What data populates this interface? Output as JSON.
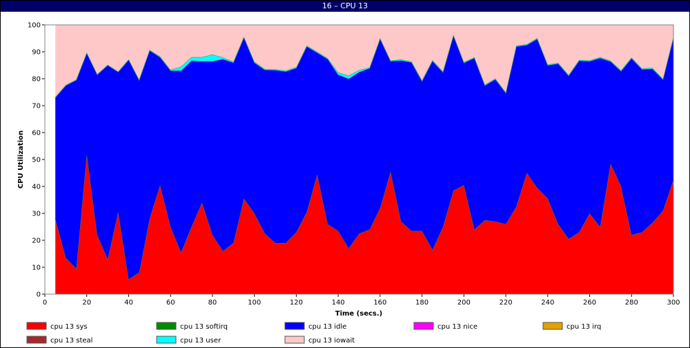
{
  "window": {
    "title": "16 – CPU 13"
  },
  "chart_data": {
    "type": "area",
    "stacked": true,
    "title": "16 – CPU 13",
    "xlabel": "Time (secs.)",
    "ylabel": "CPU Utilization",
    "xlim": [
      0,
      300
    ],
    "ylim": [
      0,
      100
    ],
    "xticks": [
      0,
      20,
      40,
      60,
      80,
      100,
      120,
      140,
      160,
      180,
      200,
      220,
      240,
      260,
      280,
      300
    ],
    "yticks": [
      0,
      10,
      20,
      30,
      40,
      50,
      60,
      70,
      80,
      90,
      100
    ],
    "legend_position": "bottom",
    "x": [
      5,
      10,
      15,
      20,
      25,
      30,
      35,
      40,
      45,
      50,
      55,
      60,
      65,
      70,
      75,
      80,
      85,
      90,
      95,
      100,
      105,
      110,
      115,
      120,
      125,
      130,
      135,
      140,
      145,
      150,
      155,
      160,
      165,
      170,
      175,
      180,
      185,
      190,
      195,
      200,
      205,
      210,
      215,
      220,
      225,
      230,
      235,
      240,
      245,
      250,
      255,
      260,
      265,
      270,
      275,
      280,
      285,
      290,
      295,
      300
    ],
    "series": [
      {
        "name": "cpu 13 sys",
        "color": "#ff0000",
        "values": [
          28,
          13.5,
          9.5,
          52,
          22,
          13,
          30.5,
          5.5,
          8,
          28,
          40.5,
          25,
          15.5,
          25,
          34,
          22,
          16,
          19,
          35.5,
          30,
          22.5,
          19,
          19,
          23,
          30.5,
          44.5,
          26,
          23.5,
          17,
          22.5,
          24,
          32,
          45.5,
          27,
          23.5,
          23.5,
          16.5,
          25,
          38.5,
          40.5,
          24,
          27.5,
          27,
          26,
          32.5,
          45,
          39.5,
          35.5,
          26,
          20.5,
          23,
          30,
          25,
          48.5,
          40,
          22,
          23,
          26.5,
          31,
          42.5
        ]
      },
      {
        "name": "cpu 13 softirq",
        "color": "#008c00",
        "values": [
          0,
          0,
          0,
          0,
          0,
          0,
          0,
          0,
          0,
          0,
          0,
          0,
          0,
          0,
          0,
          0,
          0,
          0,
          0,
          0,
          0,
          0,
          0,
          0,
          0,
          0,
          0,
          0,
          0,
          0,
          0,
          0,
          0,
          0,
          0,
          0,
          0,
          0,
          0,
          0,
          0,
          0,
          0,
          0,
          0,
          0,
          0,
          0,
          0,
          0,
          0,
          0,
          0,
          0,
          0,
          0,
          0,
          0,
          0,
          0
        ]
      },
      {
        "name": "cpu 13 idle",
        "color": "#0000ff",
        "values": [
          45,
          64,
          70,
          37.5,
          59.5,
          72,
          52,
          81.5,
          71.5,
          62.5,
          47.5,
          58,
          67.5,
          61.7,
          52.5,
          64.5,
          71.3,
          67,
          59.8,
          56,
          60.8,
          64.2,
          63.7,
          61,
          61.5,
          45.2,
          61.3,
          58,
          63,
          60,
          59.9,
          62.8,
          41,
          59.8,
          62.6,
          55.6,
          70.1,
          57.4,
          57.5,
          45.4,
          63.7,
          50,
          52.8,
          48.7,
          59.5,
          47.5,
          55.3,
          49.5,
          59.6,
          60.6,
          63.7,
          56.5,
          62.7,
          37.9,
          42.8,
          65.6,
          60.5,
          57.2,
          48.7,
          52.8
        ]
      },
      {
        "name": "cpu 13 nice",
        "color": "#ff00ff",
        "values": [
          0,
          0,
          0,
          0,
          0,
          0,
          0,
          0,
          0,
          0,
          0,
          0,
          0,
          0,
          0,
          0,
          0,
          0,
          0,
          0,
          0,
          0,
          0,
          0,
          0,
          0,
          0,
          0,
          0,
          0,
          0,
          0,
          0,
          0,
          0,
          0,
          0,
          0,
          0,
          0,
          0,
          0,
          0,
          0,
          0,
          0,
          0,
          0,
          0,
          0,
          0,
          0,
          0,
          0,
          0,
          0,
          0,
          0,
          0,
          0
        ]
      },
      {
        "name": "cpu 13 irq",
        "color": "#e1a100",
        "values": [
          0,
          0,
          0,
          0,
          0,
          0,
          0,
          0,
          0,
          0,
          0,
          0,
          0,
          0,
          0,
          0,
          0,
          0,
          0,
          0,
          0,
          0,
          0,
          0,
          0,
          0,
          0,
          0,
          0,
          0,
          0,
          0,
          0,
          0,
          0,
          0,
          0,
          0,
          0,
          0,
          0,
          0,
          0,
          0,
          0,
          0,
          0,
          0,
          0,
          0,
          0,
          0,
          0,
          0,
          0,
          0,
          0,
          0,
          0,
          0
        ]
      },
      {
        "name": "cpu 13 steal",
        "color": "#a52a2a",
        "values": [
          0,
          0,
          0,
          0,
          0,
          0,
          0,
          0,
          0,
          0,
          0,
          0,
          0,
          0,
          0,
          0,
          0,
          0,
          0,
          0,
          0,
          0,
          0,
          0,
          0,
          0,
          0,
          0,
          0,
          0,
          0,
          0,
          0,
          0,
          0,
          0,
          0,
          0,
          0,
          0,
          0,
          0,
          0,
          0,
          0,
          0,
          0,
          0,
          0,
          0,
          0,
          0,
          0,
          0,
          0,
          0,
          0,
          0,
          0,
          0
        ]
      },
      {
        "name": "cpu 13 user",
        "color": "#00ffff",
        "values": [
          0.2,
          0.2,
          0.2,
          0.2,
          0.2,
          0.2,
          0.2,
          0.2,
          0.2,
          0.2,
          0.3,
          0.3,
          1.5,
          1.3,
          1.5,
          2.5,
          0.6,
          0.3,
          0.3,
          0.3,
          0.3,
          0.3,
          0.3,
          0.3,
          0.3,
          0.3,
          0.3,
          0.8,
          1.2,
          0.7,
          0.3,
          0.3,
          0.3,
          0.3,
          0.3,
          0.3,
          0.3,
          0.3,
          0.3,
          0.3,
          0.3,
          0.3,
          0.3,
          0.3,
          0.3,
          0.3,
          0.3,
          0.3,
          0.3,
          0.3,
          0.3,
          0.3,
          0.3,
          0.3,
          0.3,
          0.3,
          0.3,
          0.3,
          0.3,
          0.3
        ]
      },
      {
        "name": "cpu 13 iowait",
        "color": "#ffc8c8",
        "values": [
          26.8,
          22.3,
          20.3,
          10.3,
          18.3,
          14.8,
          17.3,
          12.8,
          20.3,
          9.3,
          11.7,
          16.7,
          15.5,
          12,
          12,
          11,
          12.1,
          13.7,
          4.4,
          13.7,
          16.4,
          16.5,
          17,
          15.7,
          7.7,
          10,
          12.4,
          17.7,
          18.8,
          16.8,
          15.8,
          4.9,
          13.2,
          12.9,
          13.6,
          20.6,
          13.1,
          17.3,
          3.7,
          13.8,
          12,
          22.2,
          19.9,
          25,
          7.7,
          7.2,
          4.9,
          14.7,
          14.1,
          18.6,
          13,
          13.2,
          12,
          13.3,
          16.9,
          12.1,
          16.2,
          16,
          20,
          4.4
        ]
      }
    ]
  }
}
